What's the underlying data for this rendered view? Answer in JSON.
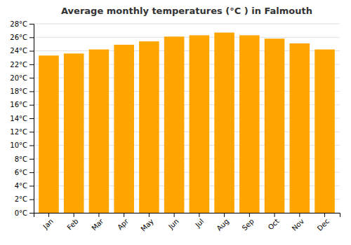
{
  "chart_data": {
    "type": "bar",
    "title": "Average monthly temperatures (°C ) in Falmouth",
    "categories": [
      "Jan",
      "Feb",
      "Mar",
      "Apr",
      "May",
      "Jun",
      "Jul",
      "Aug",
      "Sep",
      "Oct",
      "Nov",
      "Dec"
    ],
    "values": [
      23.3,
      23.6,
      24.2,
      24.9,
      25.4,
      26.1,
      26.3,
      26.7,
      26.3,
      25.8,
      25.1,
      24.2
    ],
    "color": "#FFA500",
    "ylim": [
      0,
      28
    ],
    "yticks": [
      {
        "value": 0,
        "label": "0°C"
      },
      {
        "value": 2,
        "label": "2°C"
      },
      {
        "value": 4,
        "label": "4°C"
      },
      {
        "value": 6,
        "label": "6°C"
      },
      {
        "value": 8,
        "label": "8°C"
      },
      {
        "value": 10,
        "label": "10°C"
      },
      {
        "value": 12,
        "label": "12°C"
      },
      {
        "value": 14,
        "label": "14°C"
      },
      {
        "value": 16,
        "label": "16°C"
      },
      {
        "value": 18,
        "label": "18°C"
      },
      {
        "value": 20,
        "label": "20°C"
      },
      {
        "value": 22,
        "label": "22°C"
      },
      {
        "value": 24,
        "label": "24°C"
      },
      {
        "value": 26,
        "label": "26°C"
      },
      {
        "value": 28,
        "label": "28°C"
      }
    ],
    "grid": true
  }
}
